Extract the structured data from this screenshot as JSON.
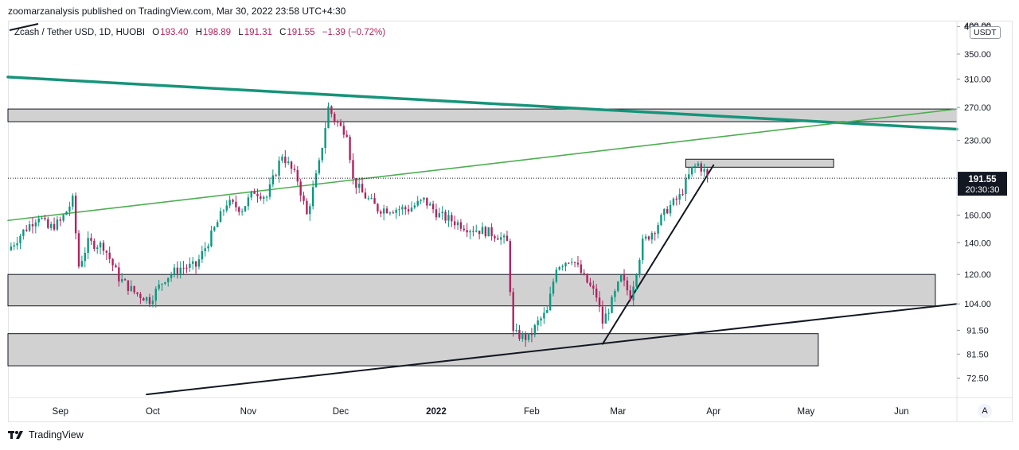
{
  "header": {
    "published": "zoomarzanalysis published on TradingView.com, Mar 30, 2022 23:58 UTC+4:30"
  },
  "legend": {
    "symbol": "Zcash / Tether USD, 1D, HUOBI",
    "open_label": "O",
    "open": "193.40",
    "high_label": "H",
    "high": "198.89",
    "low_label": "L",
    "low": "191.31",
    "close_label": "C",
    "close": "191.55",
    "change": "−1.39 (−0.72%)"
  },
  "price_axis": {
    "currency_badge": "USDT",
    "last_price": "191.55",
    "countdown": "20:30:30",
    "last_price_color": "#131722"
  },
  "auto_button": "A",
  "footer": {
    "brand": "TradingView"
  },
  "colors": {
    "up": "#089981",
    "down": "#b2235f",
    "downtrend": "#16947a",
    "uptrend_green": "#4caf50",
    "zone_fill": "#d1d1d1"
  },
  "chart_data": {
    "type": "candlestick",
    "title": "Zcash / Tether USD, 1D, HUOBI",
    "scale": "log",
    "ylim": [
      66,
      410
    ],
    "y_ticks": [
      "400.00",
      "350.00",
      "310.00",
      "270.00",
      "230.00",
      "160.00",
      "140.00",
      "120.00",
      "104.00",
      "91.50",
      "81.50",
      "72.50"
    ],
    "x_range": [
      "2021-08-15",
      "2022-06-19"
    ],
    "x_ticks": [
      {
        "label": "Sep",
        "date": "2021-09-01"
      },
      {
        "label": "Oct",
        "date": "2021-10-01"
      },
      {
        "label": "Nov",
        "date": "2021-11-01"
      },
      {
        "label": "Dec",
        "date": "2021-12-01"
      },
      {
        "label": "2022",
        "date": "2022-01-01",
        "bold": true
      },
      {
        "label": "Feb",
        "date": "2022-02-01"
      },
      {
        "label": "Mar",
        "date": "2022-03-01"
      },
      {
        "label": "Apr",
        "date": "2022-04-01"
      },
      {
        "label": "May",
        "date": "2022-05-01"
      },
      {
        "label": "Jun",
        "date": "2022-06-01"
      }
    ],
    "candle_path": [
      [
        "2021-08-15",
        135
      ],
      [
        "2021-08-20",
        148
      ],
      [
        "2021-08-25",
        160
      ],
      [
        "2021-08-28",
        150
      ],
      [
        "2021-09-01",
        155
      ],
      [
        "2021-09-05",
        172
      ],
      [
        "2021-09-07",
        125
      ],
      [
        "2021-09-10",
        140
      ],
      [
        "2021-09-15",
        138
      ],
      [
        "2021-09-20",
        118
      ],
      [
        "2021-09-25",
        110
      ],
      [
        "2021-09-30",
        106
      ],
      [
        "2021-10-05",
        118
      ],
      [
        "2021-10-10",
        124
      ],
      [
        "2021-10-15",
        125
      ],
      [
        "2021-10-20",
        145
      ],
      [
        "2021-10-25",
        170
      ],
      [
        "2021-10-30",
        165
      ],
      [
        "2021-11-03",
        180
      ],
      [
        "2021-11-07",
        175
      ],
      [
        "2021-11-12",
        215
      ],
      [
        "2021-11-17",
        190
      ],
      [
        "2021-11-20",
        160
      ],
      [
        "2021-11-24",
        205
      ],
      [
        "2021-11-27",
        270
      ],
      [
        "2021-11-29",
        255
      ],
      [
        "2021-12-01",
        245
      ],
      [
        "2021-12-03",
        240
      ],
      [
        "2021-12-05",
        190
      ],
      [
        "2021-12-08",
        178
      ],
      [
        "2021-12-13",
        165
      ],
      [
        "2021-12-18",
        165
      ],
      [
        "2021-12-23",
        165
      ],
      [
        "2021-12-28",
        172
      ],
      [
        "2022-01-02",
        160
      ],
      [
        "2022-01-07",
        155
      ],
      [
        "2022-01-12",
        150
      ],
      [
        "2022-01-17",
        148
      ],
      [
        "2022-01-21",
        145
      ],
      [
        "2022-01-24",
        140
      ],
      [
        "2022-01-26",
        90
      ],
      [
        "2022-01-31",
        88
      ],
      [
        "2022-02-03",
        95
      ],
      [
        "2022-02-06",
        100
      ],
      [
        "2022-02-09",
        125
      ],
      [
        "2022-02-14",
        130
      ],
      [
        "2022-02-18",
        118
      ],
      [
        "2022-02-22",
        108
      ],
      [
        "2022-02-24",
        95
      ],
      [
        "2022-02-27",
        105
      ],
      [
        "2022-03-02",
        118
      ],
      [
        "2022-03-05",
        108
      ],
      [
        "2022-03-09",
        140
      ],
      [
        "2022-03-13",
        150
      ],
      [
        "2022-03-17",
        165
      ],
      [
        "2022-03-21",
        175
      ],
      [
        "2022-03-25",
        200
      ],
      [
        "2022-03-27",
        205
      ],
      [
        "2022-03-29",
        198
      ],
      [
        "2022-03-30",
        191.55
      ]
    ],
    "drawings": {
      "zones": [
        {
          "from": "2021-08-15",
          "to": "2022-06-19",
          "low": 252,
          "high": 268
        },
        {
          "from": "2022-03-23",
          "to": "2022-05-10",
          "low": 202,
          "high": 210
        },
        {
          "from": "2021-08-15",
          "to": "2022-06-12",
          "low": 103,
          "high": 120
        },
        {
          "from": "2021-08-15",
          "to": "2022-05-05",
          "low": 77,
          "high": 90
        }
      ],
      "lines": [
        {
          "name": "green resistance",
          "points": [
            [
              "2021-08-15",
              313
            ],
            [
              "2022-06-19",
              243
            ]
          ]
        },
        {
          "name": "green trend",
          "points": [
            [
              "2021-08-15",
              156
            ],
            [
              "2022-06-19",
              268
            ]
          ]
        },
        {
          "name": "black support",
          "points": [
            [
              "2021-09-29",
              67
            ],
            [
              "2022-06-19",
              104
            ]
          ]
        },
        {
          "name": "black steep trend",
          "points": [
            [
              "2022-02-24",
              85.6
            ],
            [
              "2022-04-01",
              204
            ]
          ]
        }
      ]
    }
  }
}
